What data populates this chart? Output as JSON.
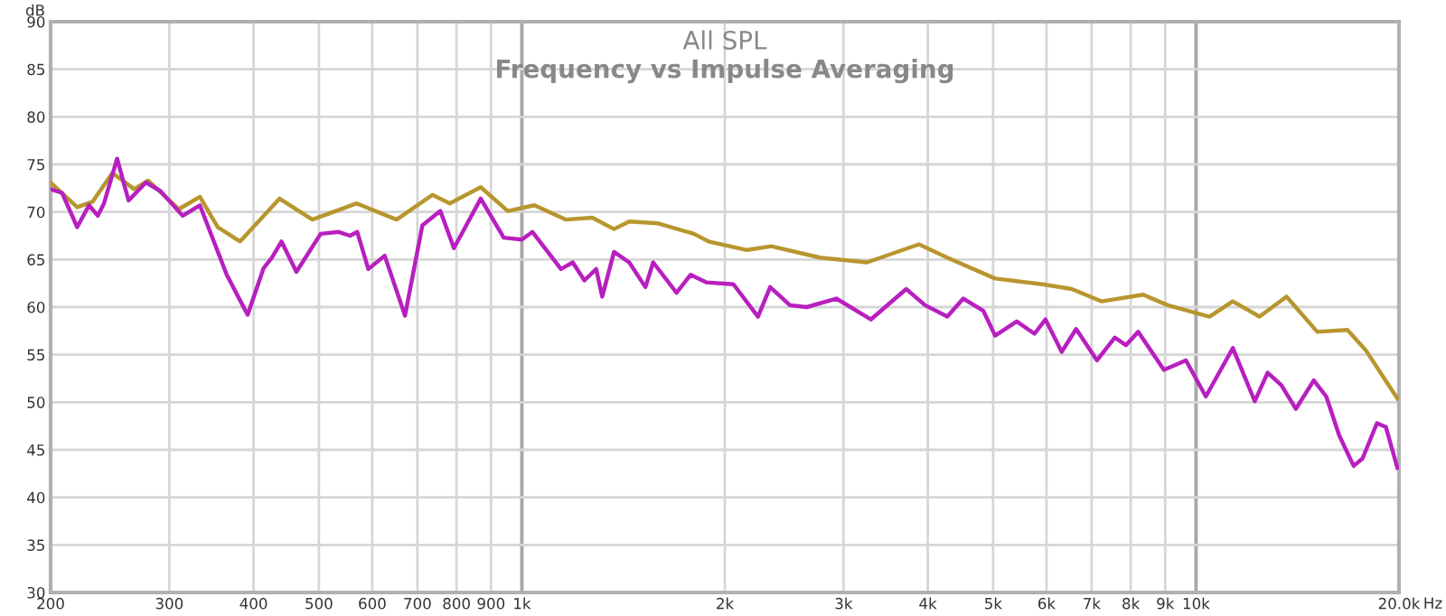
{
  "chart_data": {
    "type": "line",
    "title": "All SPL",
    "subtitle": "Frequency vs Impulse Averaging",
    "xlabel": "Hz",
    "ylabel": "dB",
    "log": "x",
    "grid": true,
    "marker": "none",
    "line_style": "solid",
    "xlim": [
      200,
      20000
    ],
    "ylim": [
      30,
      90
    ],
    "xticks": [
      200,
      300,
      400,
      500,
      600,
      700,
      800,
      900,
      {
        "value": 1000,
        "label": "1k"
      },
      {
        "value": 2000,
        "label": "2k"
      },
      {
        "value": 3000,
        "label": "3k"
      },
      {
        "value": 4000,
        "label": "4k"
      },
      {
        "value": 5000,
        "label": "5k"
      },
      {
        "value": 6000,
        "label": "6k"
      },
      {
        "value": 7000,
        "label": "7k"
      },
      {
        "value": 8000,
        "label": "8k"
      },
      {
        "value": 9000,
        "label": "9k"
      },
      {
        "value": 10000,
        "label": "10k"
      },
      {
        "value": 20000,
        "label": "20.0k"
      }
    ],
    "yticks": [
      30,
      35,
      40,
      45,
      50,
      55,
      60,
      65,
      70,
      75,
      80,
      85,
      90
    ],
    "series": [
      {
        "color": "#b8962e",
        "x": [
          200,
          219,
          231,
          247,
          266,
          279,
          310,
          333,
          354,
          382,
          437,
          489,
          569,
          652,
          737,
          782,
          869,
          953,
          1044,
          1161,
          1272,
          1370,
          1443,
          1592,
          1800,
          1891,
          2157,
          2345,
          2768,
          3251,
          3881,
          4276,
          5035,
          5922,
          6543,
          7248,
          8348,
          9076,
          10470,
          11335,
          12420,
          13620,
          15130,
          16770,
          17840,
          19890
        ],
        "values": [
          73.1,
          70.5,
          71.1,
          74.1,
          72.4,
          73.3,
          70.3,
          71.6,
          68.4,
          66.9,
          71.4,
          69.2,
          70.9,
          69.2,
          71.8,
          70.9,
          72.6,
          70.1,
          70.7,
          69.2,
          69.4,
          68.2,
          69.0,
          68.8,
          67.7,
          66.9,
          66.0,
          66.4,
          65.2,
          64.7,
          66.6,
          65.2,
          63.0,
          62.4,
          61.9,
          60.6,
          61.3,
          60.2,
          59.0,
          60.6,
          59.0,
          61.1,
          57.4,
          57.6,
          55.5,
          50.4
        ]
      },
      {
        "color": "#b81fbf",
        "x": [
          200,
          208,
          219,
          228,
          235,
          240,
          251,
          261,
          277,
          291,
          314,
          333,
          365,
          382,
          392,
          414,
          426,
          440,
          463,
          503,
          535,
          556,
          570,
          592,
          626,
          671,
          712,
          757,
          793,
          869,
          940,
          1000,
          1037,
          1143,
          1190,
          1238,
          1289,
          1316,
          1370,
          1443,
          1525,
          1566,
          1696,
          1780,
          1876,
          2060,
          2240,
          2335,
          2498,
          2646,
          2927,
          3293,
          3716,
          3963,
          4276,
          4516,
          4837,
          5035,
          5420,
          5760,
          5980,
          6320,
          6640,
          7130,
          7580,
          7870,
          8210,
          8960,
          9660,
          10340,
          11340,
          12220,
          12770,
          13380,
          14060,
          14950,
          15600,
          16310,
          17130,
          17660,
          18550,
          19120,
          19890
        ],
        "values": [
          72.4,
          72.0,
          68.4,
          70.7,
          69.6,
          70.9,
          75.6,
          71.2,
          73.1,
          72.2,
          69.6,
          70.7,
          63.4,
          60.7,
          59.2,
          64.1,
          65.2,
          66.9,
          63.7,
          67.7,
          67.9,
          67.5,
          67.9,
          64.0,
          65.4,
          59.1,
          68.6,
          70.1,
          66.2,
          71.4,
          67.3,
          67.1,
          67.9,
          64.0,
          64.7,
          62.8,
          64.0,
          61.1,
          65.8,
          64.7,
          62.1,
          64.7,
          61.5,
          63.4,
          62.6,
          62.4,
          59.0,
          62.1,
          60.2,
          60.0,
          60.9,
          58.7,
          61.9,
          60.2,
          59.0,
          60.9,
          59.6,
          57.0,
          58.5,
          57.2,
          58.7,
          55.3,
          57.7,
          54.4,
          56.8,
          56.0,
          57.4,
          53.4,
          54.4,
          50.6,
          55.7,
          50.1,
          53.1,
          51.8,
          49.3,
          52.3,
          50.6,
          46.5,
          43.3,
          44.1,
          47.8,
          47.4,
          43.1
        ]
      }
    ]
  }
}
